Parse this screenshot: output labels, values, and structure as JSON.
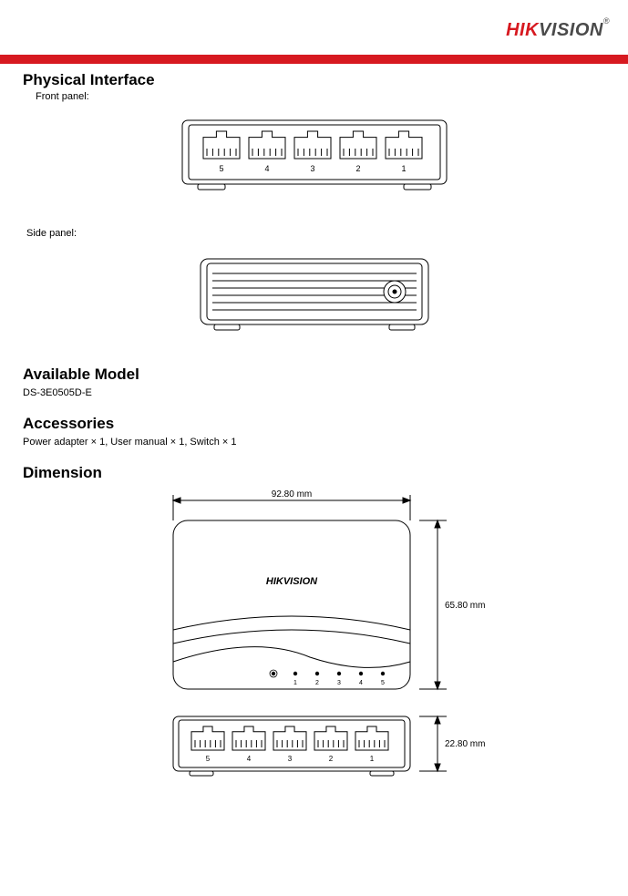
{
  "brand": {
    "hik": "HIK",
    "vision": "VISION",
    "reg": "®"
  },
  "section1": {
    "title": "Physical Interface",
    "front_label": "Front panel:",
    "side_label": "Side panel:"
  },
  "section2": {
    "title": "Available Model",
    "text": "DS-3E0505D-E"
  },
  "section3": {
    "title": "Accessories",
    "text": "Power adapter  ×  1, User manual  ×  1, Switch  ×  1"
  },
  "section4": {
    "title": "Dimension",
    "width_label": "92.80 mm",
    "height_label": "65.80 mm",
    "depth_label": "22.80 mm",
    "top_brand": "HIKVISION",
    "led_labels": [
      "1",
      "2",
      "3",
      "4",
      "5"
    ]
  },
  "port_labels_desc": [
    "5",
    "4",
    "3",
    "2",
    "1"
  ],
  "diagram_style": {
    "stroke": "#000000",
    "stroke_width": 1,
    "fill": "none",
    "font_family": "Arial",
    "port_label_fontsize": 9,
    "dim_label_fontsize": 10
  }
}
